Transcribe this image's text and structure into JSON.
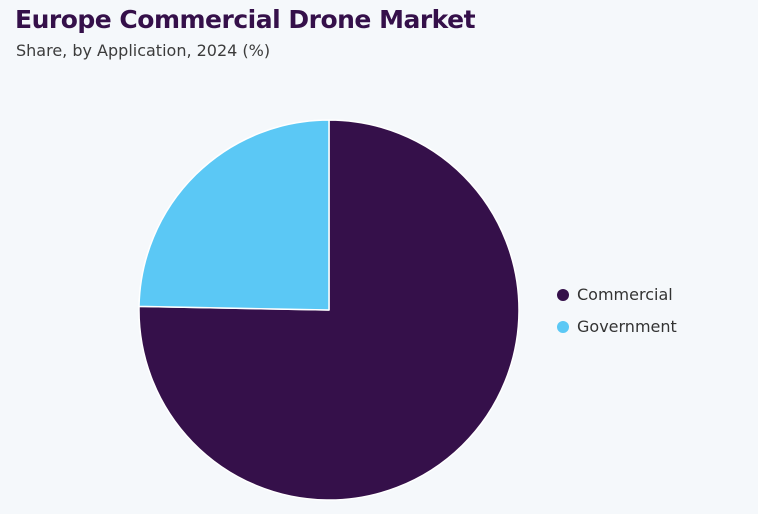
{
  "chart_data": {
    "type": "pie",
    "title": "Europe Commercial Drone Market",
    "subtitle": "Share, by Application, 2024 (%)",
    "categories": [
      "Commercial",
      "Government"
    ],
    "values": [
      75.3,
      24.7
    ],
    "colors": [
      "#35104a",
      "#5bc8f5"
    ],
    "legend_position": "right"
  }
}
